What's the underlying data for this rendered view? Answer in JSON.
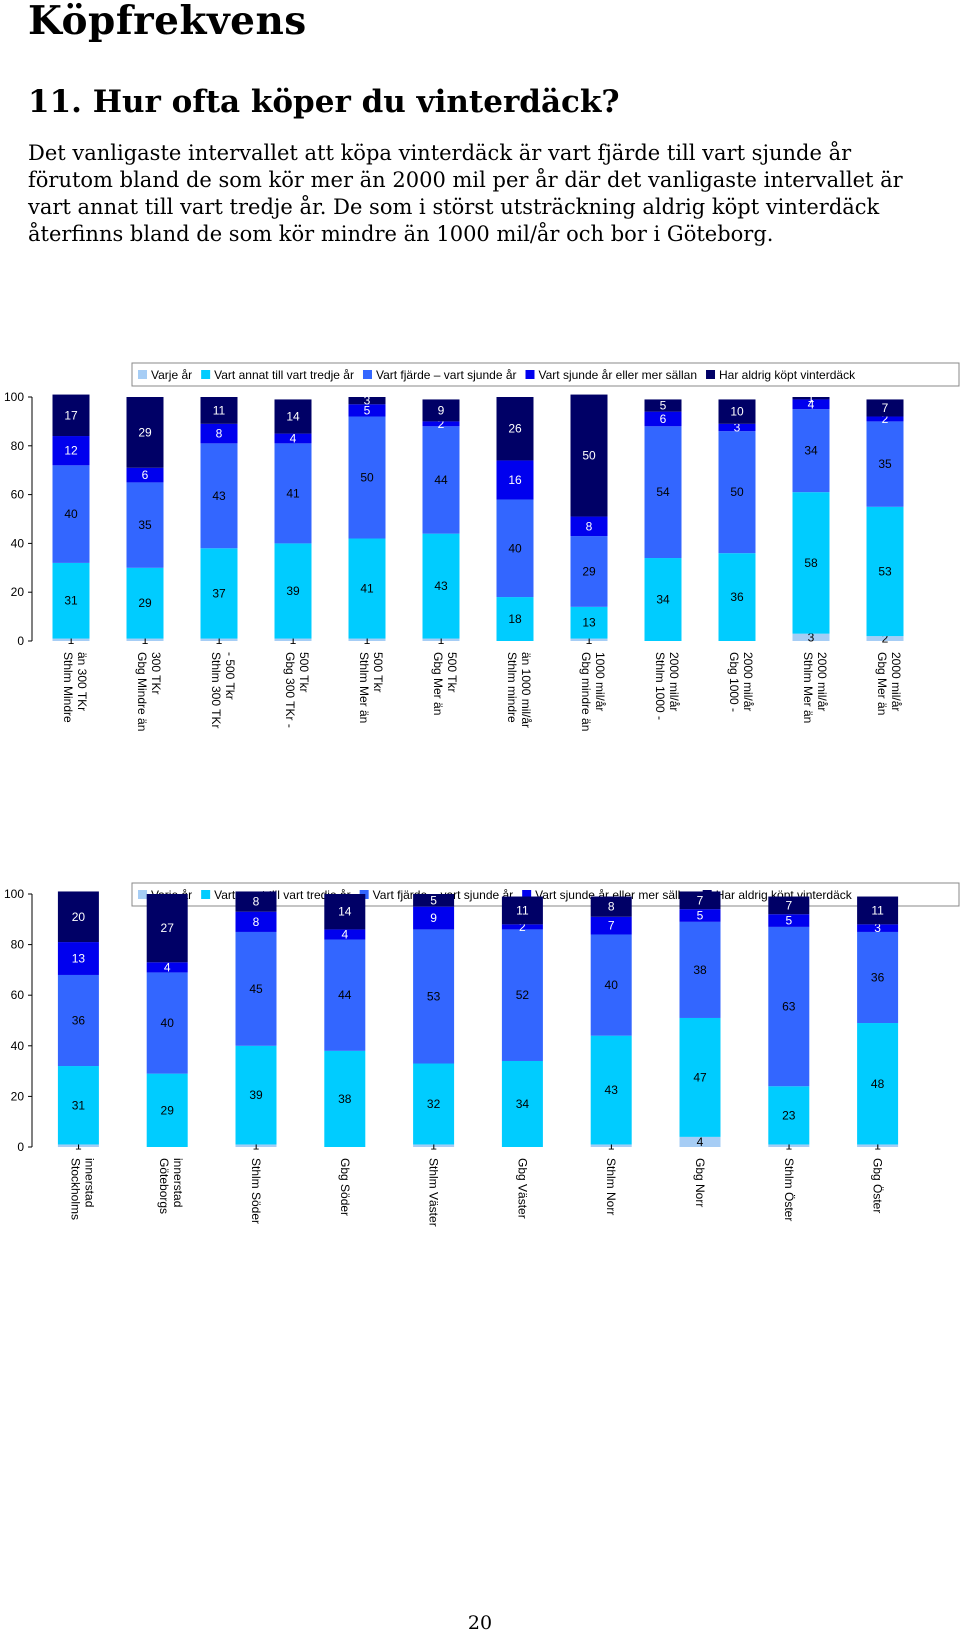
{
  "page": {
    "title": "Köpfrekvens",
    "question": "11.  Hur ofta köper du vinterdäck?",
    "intro": "Det vanligaste intervallet att köpa vinterdäck är vart fjärde till vart sjunde år förutom bland de som kör mer än 2000 mil per år där det vanligaste intervallet är vart annat till vart tredje år. De som i störst utsträckning aldrig köpt vinterdäck återfinns bland de som kör mindre än 1000 mil/år och bor i Göteborg.",
    "page_number": "20"
  },
  "chart_data": [
    {
      "type": "bar",
      "stacked": true,
      "ylim": [
        0,
        100
      ],
      "yticks": [
        "0",
        "20",
        "40",
        "60",
        "80",
        "100"
      ],
      "legend_position": "top",
      "categories": [
        "Sthlm Mindre än 300 TKr",
        "Gbg Mindre än 300 TKr",
        "Sthlm 300 TKr - 500 Tkr",
        "Gbg 300 TKr - 500 Tkr",
        "Sthlm Mer än 500 Tkr",
        "Gbg Mer än 500 Tkr",
        "Sthlm mindre än 1000 mil/år",
        "Gbg mindre än 1000 mil/år",
        "Sthlm 1000 - 2000 mil/år",
        "Gbg 1000 - 2000 mil/år",
        "Sthlm Mer än 2000 mil/år",
        "Gbg Mer än 2000 mil/år"
      ],
      "category_lines": [
        [
          "Sthlm Mindre",
          "än 300 TKr"
        ],
        [
          "Gbg Mindre än",
          "300 TKr"
        ],
        [
          "Sthlm 300 TKr",
          "- 500 Tkr"
        ],
        [
          "Gbg 300 TKr -",
          "500 Tkr"
        ],
        [
          "Sthlm Mer än",
          "500 Tkr"
        ],
        [
          "Gbg Mer än",
          "500 Tkr"
        ],
        [
          "Sthlm mindre",
          "än 1000 mil/år"
        ],
        [
          "Gbg mindre än",
          "1000 mil/år"
        ],
        [
          "Sthlm 1000 -",
          "2000 mil/år"
        ],
        [
          "Gbg 1000 -",
          "2000 mil/år"
        ],
        [
          "Sthlm Mer än",
          "2000 mil/år"
        ],
        [
          "Gbg Mer än",
          "2000 mil/år"
        ]
      ],
      "series": [
        {
          "name": "Varje år",
          "color": "#a6cdf5",
          "values": [
            1,
            1,
            1,
            1,
            1,
            1,
            0,
            1,
            0,
            0,
            3,
            2
          ]
        },
        {
          "name": "Vart annat till vart tredje år",
          "color": "#00ccff",
          "values": [
            31,
            29,
            37,
            39,
            41,
            43,
            18,
            13,
            34,
            36,
            58,
            53
          ]
        },
        {
          "name": "Vart fjärde – vart sjunde år",
          "color": "#3366ff",
          "values": [
            40,
            35,
            43,
            41,
            50,
            44,
            40,
            29,
            54,
            50,
            34,
            35
          ]
        },
        {
          "name": "Vart sjunde år eller mer sällan",
          "color": "#0000ee",
          "values": [
            12,
            6,
            8,
            4,
            5,
            2,
            16,
            8,
            6,
            3,
            4,
            2
          ]
        },
        {
          "name": "Har aldrig köpt vinterdäck",
          "color": "#000066",
          "values": [
            17,
            29,
            11,
            14,
            3,
            9,
            26,
            50,
            5,
            10,
            1,
            7
          ]
        }
      ]
    },
    {
      "type": "bar",
      "stacked": true,
      "ylim": [
        0,
        100
      ],
      "yticks": [
        "0",
        "20",
        "40",
        "60",
        "80",
        "100"
      ],
      "legend_position": "top",
      "categories": [
        "Stockholms innerstad",
        "Göteborgs innerstad",
        "Sthlm Söder",
        "Gbg Söder",
        "Sthlm Väster",
        "Gbg Väster",
        "Sthlm Norr",
        "Gbg Norr",
        "Sthlm Öster",
        "Gbg Öster"
      ],
      "category_lines": [
        [
          "Stockholms",
          "innerstad"
        ],
        [
          "Göteborgs",
          "innerstad"
        ],
        [
          "Sthlm Söder"
        ],
        [
          "Gbg Söder"
        ],
        [
          "Sthlm Väster"
        ],
        [
          "Gbg Väster"
        ],
        [
          "Sthlm Norr"
        ],
        [
          "Gbg Norr"
        ],
        [
          "Sthlm Öster"
        ],
        [
          "Gbg Öster"
        ]
      ],
      "series": [
        {
          "name": "Varje år",
          "color": "#a6cdf5",
          "values": [
            1,
            0,
            1,
            0,
            1,
            0,
            1,
            4,
            1,
            1
          ]
        },
        {
          "name": "Vartannat till vart tredje år",
          "color": "#00ccff",
          "values": [
            31,
            29,
            39,
            38,
            32,
            34,
            43,
            47,
            23,
            48
          ]
        },
        {
          "name": "Vart fjärde – vart sjunde år",
          "color": "#3366ff",
          "values": [
            36,
            40,
            45,
            44,
            53,
            52,
            40,
            38,
            63,
            36
          ]
        },
        {
          "name": "Vart sjunde år eller mer sällan",
          "color": "#0000ee",
          "values": [
            13,
            4,
            8,
            4,
            9,
            2,
            7,
            5,
            5,
            3
          ]
        },
        {
          "name": "Har aldrig köpt vinterdäck",
          "color": "#000066",
          "values": [
            20,
            27,
            8,
            14,
            5,
            11,
            8,
            7,
            7,
            11
          ]
        }
      ]
    }
  ]
}
